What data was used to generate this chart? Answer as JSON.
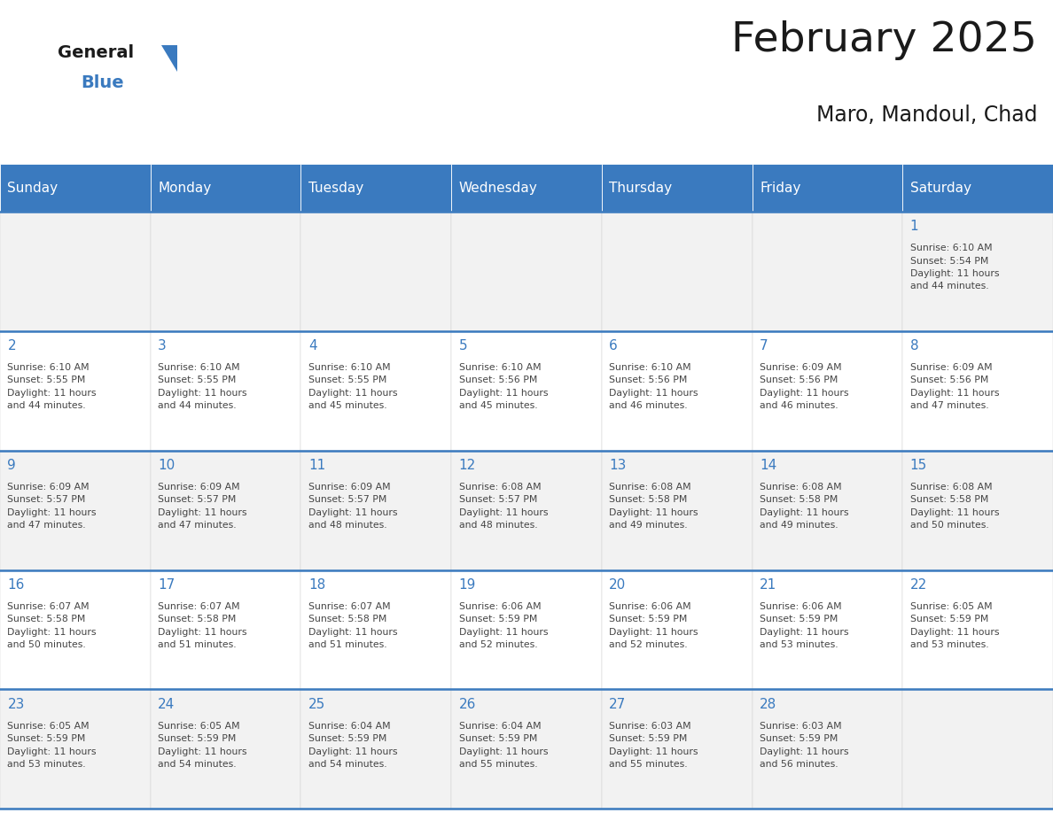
{
  "title": "February 2025",
  "subtitle": "Maro, Mandoul, Chad",
  "header_color": "#3a7abf",
  "header_text_color": "#ffffff",
  "cell_bg_even": "#f2f2f2",
  "cell_bg_odd": "#ffffff",
  "day_number_color": "#3a7abf",
  "text_color": "#444444",
  "border_color": "#3a7abf",
  "days_of_week": [
    "Sunday",
    "Monday",
    "Tuesday",
    "Wednesday",
    "Thursday",
    "Friday",
    "Saturday"
  ],
  "weeks": [
    [
      {
        "day": null,
        "info": ""
      },
      {
        "day": null,
        "info": ""
      },
      {
        "day": null,
        "info": ""
      },
      {
        "day": null,
        "info": ""
      },
      {
        "day": null,
        "info": ""
      },
      {
        "day": null,
        "info": ""
      },
      {
        "day": 1,
        "info": "Sunrise: 6:10 AM\nSunset: 5:54 PM\nDaylight: 11 hours\nand 44 minutes."
      }
    ],
    [
      {
        "day": 2,
        "info": "Sunrise: 6:10 AM\nSunset: 5:55 PM\nDaylight: 11 hours\nand 44 minutes."
      },
      {
        "day": 3,
        "info": "Sunrise: 6:10 AM\nSunset: 5:55 PM\nDaylight: 11 hours\nand 44 minutes."
      },
      {
        "day": 4,
        "info": "Sunrise: 6:10 AM\nSunset: 5:55 PM\nDaylight: 11 hours\nand 45 minutes."
      },
      {
        "day": 5,
        "info": "Sunrise: 6:10 AM\nSunset: 5:56 PM\nDaylight: 11 hours\nand 45 minutes."
      },
      {
        "day": 6,
        "info": "Sunrise: 6:10 AM\nSunset: 5:56 PM\nDaylight: 11 hours\nand 46 minutes."
      },
      {
        "day": 7,
        "info": "Sunrise: 6:09 AM\nSunset: 5:56 PM\nDaylight: 11 hours\nand 46 minutes."
      },
      {
        "day": 8,
        "info": "Sunrise: 6:09 AM\nSunset: 5:56 PM\nDaylight: 11 hours\nand 47 minutes."
      }
    ],
    [
      {
        "day": 9,
        "info": "Sunrise: 6:09 AM\nSunset: 5:57 PM\nDaylight: 11 hours\nand 47 minutes."
      },
      {
        "day": 10,
        "info": "Sunrise: 6:09 AM\nSunset: 5:57 PM\nDaylight: 11 hours\nand 47 minutes."
      },
      {
        "day": 11,
        "info": "Sunrise: 6:09 AM\nSunset: 5:57 PM\nDaylight: 11 hours\nand 48 minutes."
      },
      {
        "day": 12,
        "info": "Sunrise: 6:08 AM\nSunset: 5:57 PM\nDaylight: 11 hours\nand 48 minutes."
      },
      {
        "day": 13,
        "info": "Sunrise: 6:08 AM\nSunset: 5:58 PM\nDaylight: 11 hours\nand 49 minutes."
      },
      {
        "day": 14,
        "info": "Sunrise: 6:08 AM\nSunset: 5:58 PM\nDaylight: 11 hours\nand 49 minutes."
      },
      {
        "day": 15,
        "info": "Sunrise: 6:08 AM\nSunset: 5:58 PM\nDaylight: 11 hours\nand 50 minutes."
      }
    ],
    [
      {
        "day": 16,
        "info": "Sunrise: 6:07 AM\nSunset: 5:58 PM\nDaylight: 11 hours\nand 50 minutes."
      },
      {
        "day": 17,
        "info": "Sunrise: 6:07 AM\nSunset: 5:58 PM\nDaylight: 11 hours\nand 51 minutes."
      },
      {
        "day": 18,
        "info": "Sunrise: 6:07 AM\nSunset: 5:58 PM\nDaylight: 11 hours\nand 51 minutes."
      },
      {
        "day": 19,
        "info": "Sunrise: 6:06 AM\nSunset: 5:59 PM\nDaylight: 11 hours\nand 52 minutes."
      },
      {
        "day": 20,
        "info": "Sunrise: 6:06 AM\nSunset: 5:59 PM\nDaylight: 11 hours\nand 52 minutes."
      },
      {
        "day": 21,
        "info": "Sunrise: 6:06 AM\nSunset: 5:59 PM\nDaylight: 11 hours\nand 53 minutes."
      },
      {
        "day": 22,
        "info": "Sunrise: 6:05 AM\nSunset: 5:59 PM\nDaylight: 11 hours\nand 53 minutes."
      }
    ],
    [
      {
        "day": 23,
        "info": "Sunrise: 6:05 AM\nSunset: 5:59 PM\nDaylight: 11 hours\nand 53 minutes."
      },
      {
        "day": 24,
        "info": "Sunrise: 6:05 AM\nSunset: 5:59 PM\nDaylight: 11 hours\nand 54 minutes."
      },
      {
        "day": 25,
        "info": "Sunrise: 6:04 AM\nSunset: 5:59 PM\nDaylight: 11 hours\nand 54 minutes."
      },
      {
        "day": 26,
        "info": "Sunrise: 6:04 AM\nSunset: 5:59 PM\nDaylight: 11 hours\nand 55 minutes."
      },
      {
        "day": 27,
        "info": "Sunrise: 6:03 AM\nSunset: 5:59 PM\nDaylight: 11 hours\nand 55 minutes."
      },
      {
        "day": 28,
        "info": "Sunrise: 6:03 AM\nSunset: 5:59 PM\nDaylight: 11 hours\nand 56 minutes."
      },
      {
        "day": null,
        "info": ""
      }
    ]
  ]
}
